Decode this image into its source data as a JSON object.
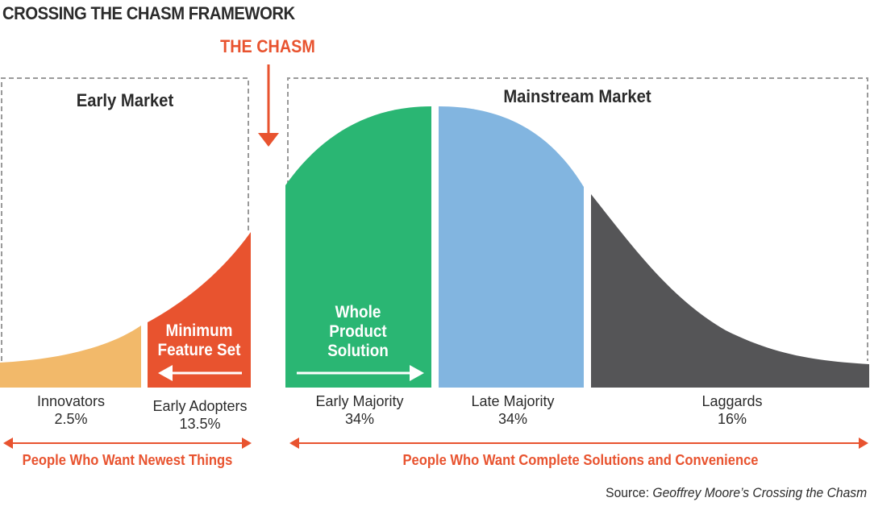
{
  "title": "CROSSING THE CHASM FRAMEWORK",
  "chasm_label": "THE CHASM",
  "markets": {
    "early": "Early Market",
    "mainstream": "Mainstream Market"
  },
  "segments": [
    {
      "name": "Innovators",
      "share": "2.5%",
      "color": "#f2b96a"
    },
    {
      "name": "Early Adopters",
      "share": "13.5%",
      "color": "#e8532f"
    },
    {
      "name": "Early Majority",
      "share": "34%",
      "color": "#2ab673"
    },
    {
      "name": "Late Majority",
      "share": "34%",
      "color": "#82b5e0"
    },
    {
      "name": "Laggards",
      "share": "16%",
      "color": "#555557"
    }
  ],
  "inner": {
    "minimum_feature_set": [
      "Minimum",
      "Feature Set"
    ],
    "whole_product": [
      "Whole",
      "Product",
      "Solution"
    ]
  },
  "people": {
    "early": "People Who Want Newest Things",
    "mainstream": "People Who Want Complete Solutions and Convenience"
  },
  "source": {
    "prefix": "Source: ",
    "title": "Geoffrey Moore’s Crossing the Chasm"
  },
  "colors": {
    "accent": "#e8532f",
    "dashed_border": "#9a9a9a",
    "text": "#2b2b2b"
  }
}
